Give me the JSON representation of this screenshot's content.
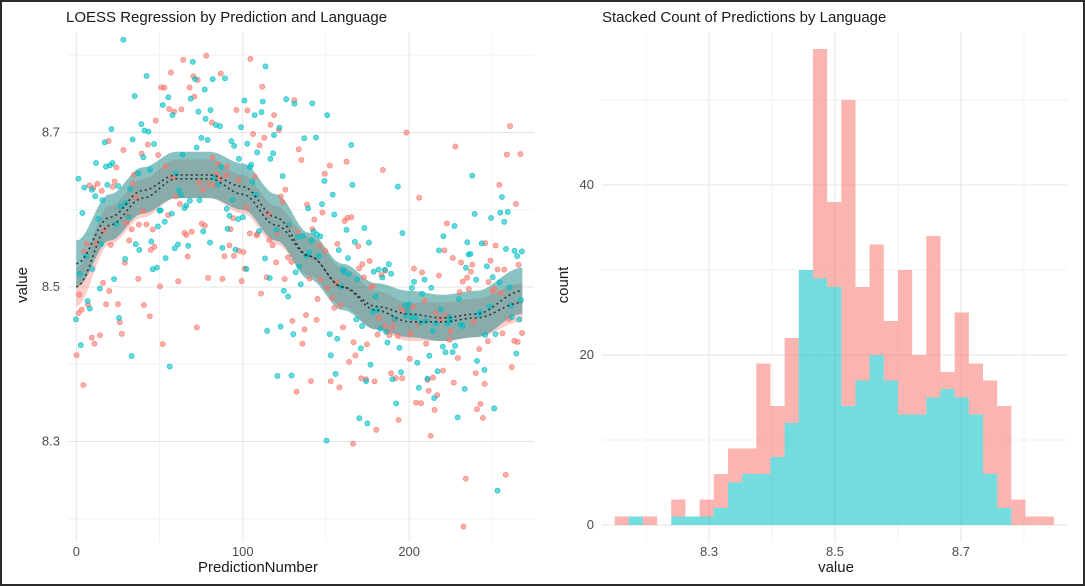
{
  "colors": {
    "series_a": "#F8766D",
    "series_b": "#00BFC4",
    "grid_major": "#e5e5e5",
    "grid_minor": "#f2f2f2",
    "loess_band_a": "#F8766D",
    "loess_band_b": "#2a8f8f"
  },
  "chart_data": [
    {
      "type": "scatter",
      "title": "LOESS Regression by Prediction and Language",
      "xlabel": "PredictionNumber",
      "ylabel": "value",
      "xlim": [
        -5,
        275
      ],
      "ylim": [
        8.17,
        8.83
      ],
      "xticks": [
        0,
        100,
        200
      ],
      "xtick_labels": [
        "0",
        "100",
        "200"
      ],
      "yticks": [
        8.3,
        8.5,
        8.7
      ],
      "ytick_labels": [
        "8.3",
        "8.5",
        "8.7"
      ],
      "grid": true,
      "legend": "none",
      "series": [
        {
          "color": "#F8766D",
          "loess": [
            [
              0,
              8.5
            ],
            [
              20,
              8.58
            ],
            [
              40,
              8.615
            ],
            [
              60,
              8.64
            ],
            [
              80,
              8.64
            ],
            [
              100,
              8.62
            ],
            [
              120,
              8.58
            ],
            [
              140,
              8.54
            ],
            [
              160,
              8.5
            ],
            [
              180,
              8.47
            ],
            [
              200,
              8.455
            ],
            [
              220,
              8.455
            ],
            [
              240,
              8.46
            ],
            [
              268,
              8.48
            ]
          ],
          "band": 0.025
        },
        {
          "color": "#00BFC4",
          "loess": [
            [
              0,
              8.53
            ],
            [
              20,
              8.59
            ],
            [
              40,
              8.625
            ],
            [
              60,
              8.645
            ],
            [
              80,
              8.645
            ],
            [
              100,
              8.63
            ],
            [
              120,
              8.59
            ],
            [
              140,
              8.54
            ],
            [
              160,
              8.5
            ],
            [
              180,
              8.475
            ],
            [
              200,
              8.465
            ],
            [
              220,
              8.46
            ],
            [
              240,
              8.465
            ],
            [
              268,
              8.495
            ]
          ],
          "band": 0.03
        }
      ]
    },
    {
      "type": "bar",
      "title": "Stacked Count of Predictions by Language",
      "xlabel": "value",
      "ylabel": "count",
      "stacked": true,
      "xlim": [
        8.13,
        8.87
      ],
      "ylim": [
        -2,
        58
      ],
      "bin_width": 0.0225,
      "xticks": [
        8.3,
        8.5,
        8.7
      ],
      "xtick_labels": [
        "8.3",
        "8.5",
        "8.7"
      ],
      "yticks": [
        0,
        20,
        40
      ],
      "ytick_labels": [
        "0",
        "20",
        "40"
      ],
      "grid": true,
      "legend": "none",
      "bins_left": [
        8.15,
        8.1725,
        8.195,
        8.2175,
        8.24,
        8.2625,
        8.285,
        8.3075,
        8.33,
        8.3525,
        8.375,
        8.3975,
        8.42,
        8.4425,
        8.465,
        8.4875,
        8.51,
        8.5325,
        8.555,
        8.5775,
        8.6,
        8.6225,
        8.645,
        8.6675,
        8.69,
        8.7125,
        8.735,
        8.7575,
        8.78,
        8.8025,
        8.825
      ],
      "series": [
        {
          "color": "#00BFC4",
          "values": [
            0,
            1,
            0,
            0,
            1,
            1,
            1,
            2,
            5,
            6,
            6,
            8,
            12,
            30,
            29,
            28,
            14,
            17,
            20,
            17,
            13,
            13,
            15,
            16,
            15,
            13,
            6,
            2,
            0,
            0,
            0
          ]
        },
        {
          "color": "#F8766D",
          "values": [
            1,
            0,
            1,
            0,
            2,
            0,
            2,
            4,
            4,
            3,
            13,
            6,
            10,
            0,
            27,
            10,
            36,
            11,
            13,
            7,
            17,
            7,
            19,
            2,
            10,
            6,
            11,
            12,
            3,
            1,
            1
          ]
        }
      ]
    }
  ]
}
